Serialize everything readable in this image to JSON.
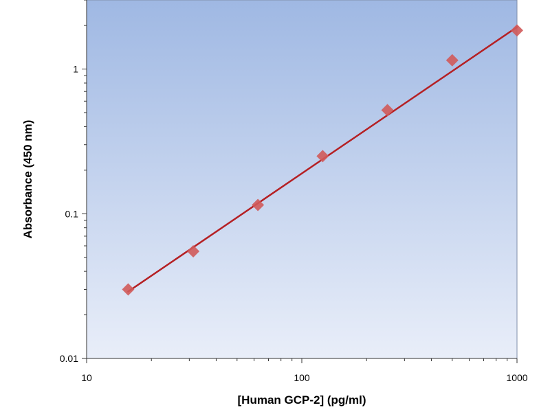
{
  "chart_data": {
    "type": "scatter",
    "title": "",
    "xlabel": "[Human GCP-2] (pg/ml)",
    "ylabel": "Absorbance (450 nm)",
    "x_scale": "log",
    "y_scale": "log",
    "xlim": [
      10,
      1000
    ],
    "ylim": [
      0.01,
      3
    ],
    "x_ticks": [
      10,
      100,
      1000
    ],
    "x_tick_labels": [
      "10",
      "100",
      "1000"
    ],
    "y_ticks": [
      0.01,
      0.1,
      1
    ],
    "y_tick_labels": [
      "0.01",
      "0.1",
      "1"
    ],
    "grid": false,
    "legend": "none",
    "series": [
      {
        "marker": "diamond",
        "x": [
          15.6,
          31.3,
          62.5,
          125,
          250,
          500,
          1000
        ],
        "y": [
          0.03,
          0.055,
          0.115,
          0.25,
          0.52,
          1.15,
          1.85
        ]
      }
    ],
    "fit_line": {
      "x": [
        15.6,
        1000
      ],
      "y": [
        0.029,
        1.95
      ]
    },
    "colors": {
      "marker": "#d05a5a",
      "line": "#b52024",
      "plot_bg_top": "#9fb8e3",
      "plot_bg_bottom": "#e9eef9"
    }
  }
}
